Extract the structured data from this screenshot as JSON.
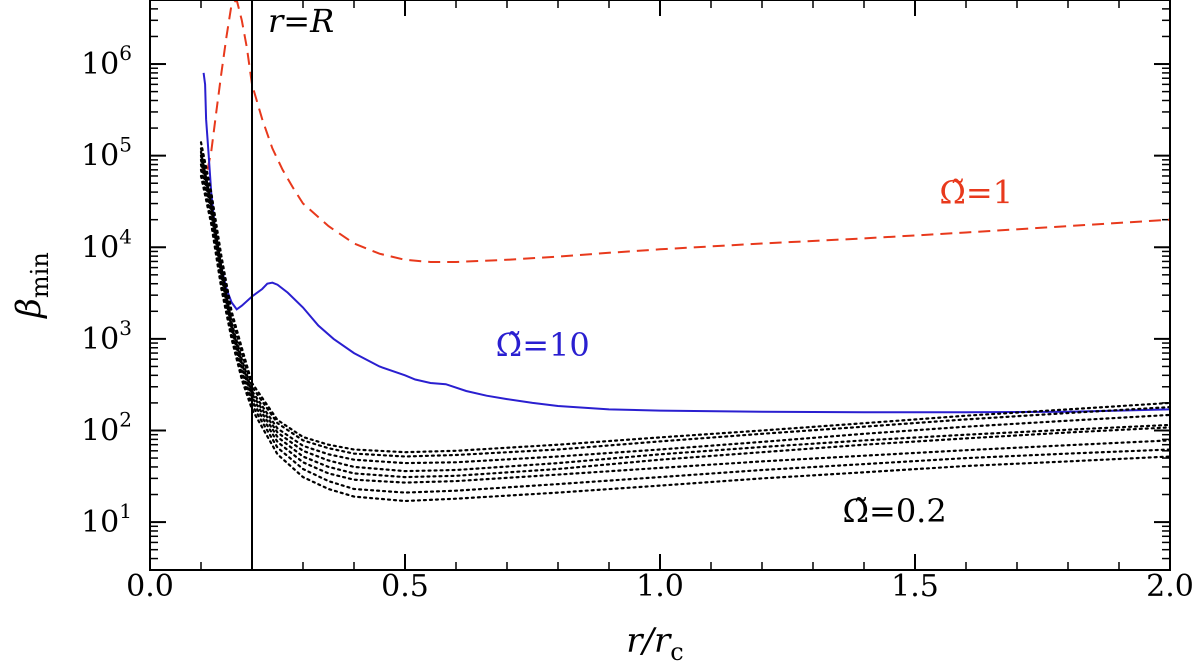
{
  "chart_data": {
    "type": "line",
    "xlabel": "r/r",
    "xlabel_sub": "c",
    "ylabel": "β",
    "ylabel_sub": "min",
    "xlim": [
      0.0,
      2.0
    ],
    "ylim": [
      3,
      5000000
    ],
    "yscale": "log",
    "grid": false,
    "x_ticks": [
      "0.0",
      "0.5",
      "1.0",
      "1.5",
      "2.0"
    ],
    "x_tick_values": [
      0.0,
      0.5,
      1.0,
      1.5,
      2.0
    ],
    "y_ticks": [
      {
        "base": "10",
        "exp": "1",
        "value": 10
      },
      {
        "base": "10",
        "exp": "2",
        "value": 100
      },
      {
        "base": "10",
        "exp": "3",
        "value": 1000
      },
      {
        "base": "10",
        "exp": "4",
        "value": 10000
      },
      {
        "base": "10",
        "exp": "5",
        "value": 100000
      },
      {
        "base": "10",
        "exp": "6",
        "value": 1000000
      }
    ],
    "vline": {
      "x": 0.2,
      "label": "r=R"
    },
    "colors": {
      "omega1": "#e8391c",
      "omega10": "#2a1fd0",
      "dotted": "#000000"
    },
    "annotations": [
      {
        "text": "Ω̃=1",
        "color": "#e8391c",
        "x": 1.62,
        "y": 30000
      },
      {
        "text": "Ω̃=10",
        "color": "#2a1fd0",
        "x": 0.77,
        "y": 650
      },
      {
        "text": "Ω̃=0.2",
        "color": "#000000",
        "x": 1.46,
        "y": 10
      }
    ],
    "series": [
      {
        "name": "Ω̃=1",
        "style": "dashed",
        "color": "#e8391c",
        "x": [
          0.1,
          0.11,
          0.12,
          0.13,
          0.14,
          0.15,
          0.16,
          0.17,
          0.18,
          0.19,
          0.2,
          0.22,
          0.24,
          0.26,
          0.28,
          0.3,
          0.35,
          0.4,
          0.45,
          0.5,
          0.55,
          0.6,
          0.7,
          0.8,
          0.9,
          1.0,
          1.2,
          1.4,
          1.6,
          1.8,
          2.0
        ],
        "y": [
          80000,
          60000,
          110000,
          300000,
          800000,
          2000000,
          4500000,
          5000000,
          3000000,
          1500000,
          600000,
          250000,
          120000,
          70000,
          45000,
          30000,
          17000,
          11000,
          8500,
          7300,
          6900,
          6900,
          7300,
          7900,
          8700,
          9500,
          11000,
          12500,
          14500,
          17000,
          20000
        ]
      },
      {
        "name": "Ω̃=10",
        "style": "solid",
        "color": "#2a1fd0",
        "x": [
          0.105,
          0.108,
          0.11,
          0.115,
          0.12,
          0.13,
          0.14,
          0.15,
          0.16,
          0.17,
          0.18,
          0.2,
          0.22,
          0.23,
          0.24,
          0.25,
          0.27,
          0.3,
          0.33,
          0.36,
          0.4,
          0.45,
          0.5,
          0.52,
          0.55,
          0.58,
          0.62,
          0.66,
          0.7,
          0.75,
          0.8,
          0.9,
          1.0,
          1.2,
          1.4,
          1.6,
          1.8,
          1.9,
          2.0
        ],
        "y": [
          800000,
          600000,
          250000,
          100000,
          40000,
          12000,
          6000,
          3500,
          2500,
          2100,
          2300,
          2900,
          3500,
          4000,
          4100,
          3900,
          3200,
          2200,
          1400,
          1000,
          700,
          500,
          400,
          360,
          330,
          320,
          270,
          240,
          220,
          200,
          185,
          170,
          165,
          160,
          158,
          158,
          160,
          165,
          170
        ]
      },
      {
        "name": "",
        "style": "dotted",
        "color": "#000000",
        "x": [
          0.1,
          0.12,
          0.14,
          0.16,
          0.18,
          0.2,
          0.25,
          0.3,
          0.35,
          0.4,
          0.5,
          0.6,
          0.8,
          1.0,
          1.2,
          1.4,
          1.6,
          1.8,
          2.0
        ],
        "y": [
          140000,
          40000,
          8000,
          2000,
          800,
          330,
          130,
          85,
          70,
          62,
          58,
          60,
          70,
          84,
          100,
          120,
          145,
          170,
          200
        ]
      },
      {
        "name": "",
        "style": "dotted",
        "color": "#000000",
        "x": [
          0.1,
          0.12,
          0.14,
          0.16,
          0.18,
          0.2,
          0.25,
          0.3,
          0.35,
          0.4,
          0.5,
          0.6,
          0.8,
          1.0,
          1.2,
          1.4,
          1.6,
          1.8,
          2.0
        ],
        "y": [
          120000,
          35000,
          7000,
          1800,
          700,
          300,
          120,
          78,
          64,
          56,
          52,
          54,
          62,
          76,
          92,
          110,
          132,
          155,
          180
        ]
      },
      {
        "name": "",
        "style": "dotted",
        "color": "#000000",
        "x": [
          0.1,
          0.12,
          0.14,
          0.16,
          0.18,
          0.2,
          0.25,
          0.3,
          0.35,
          0.4,
          0.5,
          0.6,
          0.8,
          1.0,
          1.2,
          1.4,
          1.6,
          1.8,
          2.0
        ],
        "y": [
          110000,
          30000,
          6000,
          1500,
          600,
          270,
          105,
          68,
          55,
          48,
          44,
          45,
          52,
          62,
          75,
          92,
          110,
          128,
          148
        ]
      },
      {
        "name": "",
        "style": "dotted",
        "color": "#000000",
        "x": [
          0.1,
          0.12,
          0.14,
          0.16,
          0.18,
          0.2,
          0.25,
          0.3,
          0.35,
          0.4,
          0.5,
          0.6,
          0.8,
          1.0,
          1.2,
          1.4,
          1.6,
          1.8,
          2.0
        ],
        "y": [
          100000,
          28000,
          5500,
          1400,
          550,
          250,
          95,
          60,
          47,
          40,
          36,
          37,
          44,
          55,
          66,
          78,
          90,
          102,
          115
        ]
      },
      {
        "name": "",
        "style": "dotted",
        "color": "#000000",
        "x": [
          0.1,
          0.12,
          0.14,
          0.16,
          0.18,
          0.2,
          0.25,
          0.3,
          0.35,
          0.4,
          0.5,
          0.6,
          0.8,
          1.0,
          1.2,
          1.4,
          1.6,
          1.8,
          2.0
        ],
        "y": [
          90000,
          25000,
          5000,
          1300,
          500,
          230,
          85,
          52,
          40,
          34,
          31,
          32,
          38,
          48,
          58,
          70,
          82,
          95,
          108
        ]
      },
      {
        "name": "",
        "style": "dotted",
        "color": "#000000",
        "x": [
          0.1,
          0.12,
          0.14,
          0.16,
          0.18,
          0.2,
          0.25,
          0.3,
          0.35,
          0.4,
          0.5,
          0.6,
          0.8,
          1.0,
          1.2,
          1.4,
          1.6,
          1.8,
          2.0
        ],
        "y": [
          80000,
          22000,
          4500,
          1200,
          450,
          210,
          75,
          45,
          34,
          29,
          27,
          28,
          33,
          39,
          46,
          53,
          61,
          69,
          78
        ]
      },
      {
        "name": "",
        "style": "dotted",
        "color": "#000000",
        "x": [
          0.1,
          0.12,
          0.14,
          0.16,
          0.18,
          0.2,
          0.25,
          0.3,
          0.35,
          0.4,
          0.5,
          0.6,
          0.8,
          1.0,
          1.2,
          1.4,
          1.6,
          1.8,
          2.0
        ],
        "y": [
          70000,
          20000,
          4000,
          1100,
          400,
          190,
          65,
          38,
          28,
          23,
          21,
          22,
          26,
          31,
          37,
          43,
          50,
          56,
          62
        ]
      },
      {
        "name": "",
        "style": "dotted",
        "color": "#000000",
        "x": [
          0.1,
          0.12,
          0.14,
          0.16,
          0.18,
          0.2,
          0.25,
          0.3,
          0.35,
          0.4,
          0.5,
          0.6,
          0.8,
          1.0,
          1.2,
          1.4,
          1.6,
          1.8,
          2.0
        ],
        "y": [
          60000,
          18000,
          3500,
          1000,
          360,
          170,
          55,
          31,
          23,
          19,
          17,
          18,
          21,
          25,
          30,
          35,
          41,
          46,
          52
        ]
      }
    ]
  }
}
